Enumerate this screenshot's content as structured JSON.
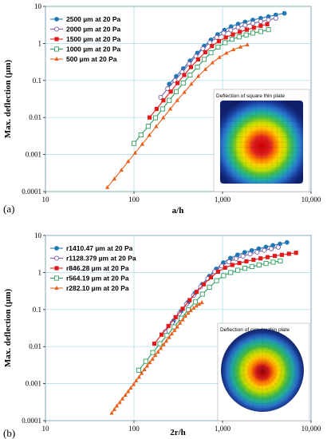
{
  "chart_data": [
    {
      "type": "line",
      "panel_label": "(a)",
      "xlabel": "a/h",
      "ylabel": "Max. deflection (µm)",
      "xscale": "log",
      "yscale": "log",
      "xlim": [
        10,
        10000
      ],
      "ylim": [
        0.0001,
        10
      ],
      "x_ticks": [
        "10",
        "100",
        "1,000",
        "10,000"
      ],
      "y_ticks": [
        "0.0001",
        "0.001",
        "0.01",
        "0.1",
        "1",
        "10"
      ],
      "grid": true,
      "legend_position": "top-left",
      "inset_title": "Deflection of square thin plate",
      "series": [
        {
          "name": "2500  µm at 20 Pa",
          "color": "#1f78b4",
          "marker": "circle-filled",
          "x": [
            250,
            300,
            360,
            430,
            520,
            620,
            740,
            880,
            1050,
            1250,
            1500,
            1800,
            2200,
            2700,
            3300,
            4000,
            5000
          ],
          "y": [
            0.08,
            0.13,
            0.21,
            0.34,
            0.55,
            0.85,
            1.25,
            1.75,
            2.3,
            2.85,
            3.35,
            3.8,
            4.3,
            4.8,
            5.3,
            5.9,
            6.5
          ]
        },
        {
          "name": "2000  µm at 20 Pa",
          "color": "#7b5ea7",
          "marker": "circle-open",
          "x": [
            200,
            240,
            290,
            350,
            420,
            500,
            600,
            720,
            860,
            1030,
            1240,
            1500,
            1800,
            2200,
            2700,
            3300,
            4000
          ],
          "y": [
            0.035,
            0.06,
            0.1,
            0.17,
            0.28,
            0.45,
            0.72,
            1.05,
            1.45,
            1.9,
            2.3,
            2.7,
            3.1,
            3.5,
            3.9,
            4.3,
            4.8
          ]
        },
        {
          "name": "1500  µm at 20 Pa",
          "color": "#e31a1c",
          "marker": "square-filled",
          "x": [
            150,
            180,
            215,
            260,
            310,
            370,
            440,
            530,
            640,
            760,
            910,
            1090,
            1310,
            1570,
            1880,
            2260,
            2700,
            3200
          ],
          "y": [
            0.01,
            0.017,
            0.029,
            0.05,
            0.085,
            0.14,
            0.23,
            0.37,
            0.58,
            0.85,
            1.15,
            1.45,
            1.75,
            2.05,
            2.35,
            2.65,
            3.0,
            3.3
          ]
        },
        {
          "name": "1000  µm at 20 Pa",
          "color": "#2e9e5b",
          "marker": "square-open",
          "x": [
            100,
            120,
            145,
            175,
            210,
            250,
            300,
            360,
            430,
            520,
            620,
            740,
            890,
            1070,
            1280,
            1540,
            1850,
            2200,
            2700,
            3300
          ],
          "y": [
            0.002,
            0.0034,
            0.0058,
            0.0098,
            0.017,
            0.029,
            0.05,
            0.085,
            0.14,
            0.23,
            0.37,
            0.56,
            0.8,
            1.05,
            1.3,
            1.5,
            1.7,
            1.9,
            2.1,
            2.35
          ]
        },
        {
          "name": "500  µm at 20 Pa",
          "color": "#e8601c",
          "marker": "triangle-filled",
          "x": [
            50,
            60,
            72,
            86,
            103,
            124,
            149,
            178,
            214,
            257,
            308,
            370,
            444,
            533,
            640,
            768,
            921,
            1106,
            1327,
            1592,
            1910
          ],
          "y": [
            0.00013,
            0.00022,
            0.00038,
            0.00065,
            0.0011,
            0.0019,
            0.0033,
            0.0057,
            0.0098,
            0.017,
            0.029,
            0.048,
            0.08,
            0.13,
            0.2,
            0.3,
            0.42,
            0.55,
            0.68,
            0.8,
            0.92
          ]
        }
      ]
    },
    {
      "type": "line",
      "panel_label": "(b)",
      "xlabel": "2r/h",
      "ylabel": "Max. deflection (µm)",
      "xscale": "log",
      "yscale": "log",
      "xlim": [
        10,
        10000
      ],
      "ylim": [
        0.0001,
        10
      ],
      "x_ticks": [
        "10",
        "100",
        "1,000",
        "10,000"
      ],
      "y_ticks": [
        "0.0001",
        "0.001",
        "0.01",
        "0.1",
        "1",
        "10"
      ],
      "grid": true,
      "legend_position": "top-left",
      "inset_title": "Deflection of circular thin plate",
      "series": [
        {
          "name": "r1410.47  µm at 20 Pa",
          "color": "#1f78b4",
          "marker": "circle-filled",
          "x": [
            280,
            340,
            410,
            490,
            590,
            710,
            850,
            1020,
            1230,
            1480,
            1780,
            2140,
            2570,
            3090,
            3710,
            4450,
            5350
          ],
          "y": [
            0.05,
            0.09,
            0.16,
            0.28,
            0.48,
            0.8,
            1.25,
            1.85,
            2.45,
            3.0,
            3.5,
            3.95,
            4.4,
            4.9,
            5.4,
            5.9,
            6.5
          ]
        },
        {
          "name": "r1128.379  µm at 20 Pa",
          "color": "#7b5ea7",
          "marker": "circle-open",
          "x": [
            225,
            270,
            325,
            390,
            470,
            565,
            680,
            815,
            980,
            1180,
            1420,
            1700,
            2050,
            2460,
            2960,
            3550,
            4270
          ],
          "y": [
            0.025,
            0.044,
            0.078,
            0.14,
            0.24,
            0.41,
            0.68,
            1.05,
            1.5,
            1.95,
            2.35,
            2.75,
            3.15,
            3.55,
            3.95,
            4.35,
            4.8
          ]
        },
        {
          "name": "r846.28  µm at 20 Pa",
          "color": "#e31a1c",
          "marker": "square-filled",
          "x": [
            170,
            205,
            245,
            295,
            355,
            425,
            510,
            615,
            740,
            890,
            1070,
            1290,
            1550,
            1860,
            2240,
            2690,
            3230,
            3890,
            4680,
            5630,
            6770
          ],
          "y": [
            0.012,
            0.021,
            0.036,
            0.062,
            0.105,
            0.18,
            0.3,
            0.48,
            0.74,
            1.05,
            1.35,
            1.6,
            1.8,
            2.0,
            2.2,
            2.4,
            2.6,
            2.8,
            3.0,
            3.2,
            3.4
          ]
        },
        {
          "name": "r564.19  µm at 20 Pa",
          "color": "#2e9e5b",
          "marker": "square-open",
          "x": [
            113,
            136,
            163,
            196,
            236,
            284,
            341,
            410,
            493,
            592,
            712,
            856,
            1029,
            1237,
            1487,
            1788,
            2149,
            2583,
            3105,
            3733,
            4487
          ],
          "y": [
            0.0023,
            0.004,
            0.0069,
            0.012,
            0.02,
            0.034,
            0.058,
            0.098,
            0.16,
            0.26,
            0.4,
            0.6,
            0.82,
            1.0,
            1.15,
            1.3,
            1.45,
            1.6,
            1.75,
            1.9,
            2.05
          ]
        },
        {
          "name": "r282.10  µm at 20 Pa",
          "color": "#e8601c",
          "marker": "triangle-filled",
          "x": [
            56,
            60,
            64,
            69,
            74,
            80,
            86,
            92,
            99,
            106,
            114,
            122,
            131,
            141,
            151,
            162,
            174,
            187,
            201,
            216,
            232,
            249,
            267,
            287,
            308,
            331,
            355,
            381,
            409,
            439,
            472,
            507,
            544,
            584
          ],
          "y": [
            0.00016,
            0.0002,
            0.00025,
            0.00031,
            0.00039,
            0.00049,
            0.00061,
            0.00076,
            0.00095,
            0.0012,
            0.0015,
            0.0019,
            0.0024,
            0.003,
            0.0037,
            0.0046,
            0.0058,
            0.0072,
            0.009,
            0.0113,
            0.0141,
            0.0176,
            0.022,
            0.0275,
            0.034,
            0.043,
            0.053,
            0.066,
            0.08,
            0.095,
            0.11,
            0.125,
            0.14,
            0.155
          ]
        }
      ]
    }
  ]
}
